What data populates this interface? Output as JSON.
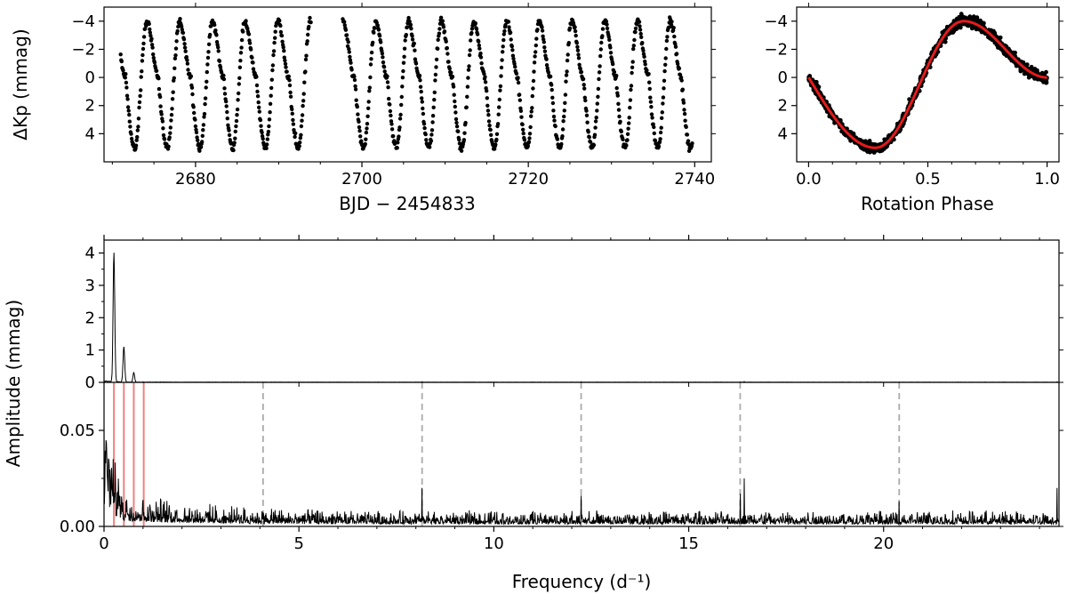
{
  "chart_data": [
    {
      "id": "lightcurve",
      "type": "scatter",
      "title": "",
      "xlabel": "BJD − 2454833",
      "ylabel": "ΔKp (mmag)",
      "xlim": [
        2669,
        2742
      ],
      "ylim": [
        6,
        -5
      ],
      "y_inverted": true,
      "xticks": [
        2680,
        2700,
        2720,
        2740
      ],
      "yticks": [
        -4,
        -2,
        0,
        2,
        4
      ],
      "rotation_period_days": 3.93,
      "segments": [
        {
          "t_start": 2671.0,
          "t_end": 2693.9
        },
        {
          "t_start": 2697.7,
          "t_end": 2739.7
        }
      ],
      "min_mag": 5.0,
      "max_mag": -4.0,
      "series_color": "#000000"
    },
    {
      "id": "phased",
      "type": "scatter",
      "title": "",
      "xlabel": "Rotation Phase",
      "ylabel": "",
      "xlim": [
        -0.05,
        1.05
      ],
      "ylim": [
        6,
        -5
      ],
      "y_inverted": true,
      "xticks": [
        0.0,
        0.5,
        1.0
      ],
      "yticks": [
        -4,
        -2,
        0,
        2,
        4
      ],
      "phase_of_min": 0.28,
      "phase_of_max": 0.65,
      "min_mag": 5.0,
      "max_mag": -4.0,
      "fit_color": "#e41a1c",
      "points_color": "#000000"
    },
    {
      "id": "amplitude_spectrum",
      "type": "line",
      "title": "",
      "xlabel": "Frequency (d⁻¹)",
      "ylabel": "Amplitude (mmag)",
      "xlim": [
        0,
        24.5
      ],
      "xticks": [
        0,
        5,
        10,
        15,
        20
      ],
      "panels": [
        {
          "name": "full",
          "ylim": [
            0,
            4.4
          ],
          "yticks": [
            0,
            1,
            2,
            3,
            4
          ],
          "peaks": [
            {
              "freq": 0.254,
              "amp": 4.0
            },
            {
              "freq": 0.509,
              "amp": 1.1
            },
            {
              "freq": 0.763,
              "amp": 0.3
            }
          ],
          "noise_level": 0.02
        },
        {
          "name": "zoom",
          "ylim": [
            0,
            0.075
          ],
          "yticks": [
            0.0,
            0.05
          ],
          "ytick_labels": [
            "0.00",
            "0.05"
          ],
          "noise_level_low": 0.012,
          "noise_level_high": 0.004,
          "harmonics_marked": [
            0.254,
            0.509,
            0.763,
            1.018
          ],
          "harmonic_color": "#f08080",
          "kepler_orbital_harmonics": [
            4.08,
            8.16,
            12.24,
            16.32,
            20.4
          ],
          "orbital_color": "#aaaaaa",
          "spikes": [
            {
              "freq": 8.16,
              "amp": 0.02
            },
            {
              "freq": 12.24,
              "amp": 0.016
            },
            {
              "freq": 16.32,
              "amp": 0.017
            },
            {
              "freq": 16.43,
              "amp": 0.025
            },
            {
              "freq": 20.4,
              "amp": 0.013
            },
            {
              "freq": 24.45,
              "amp": 0.02
            }
          ]
        }
      ],
      "series_color": "#000000"
    }
  ]
}
